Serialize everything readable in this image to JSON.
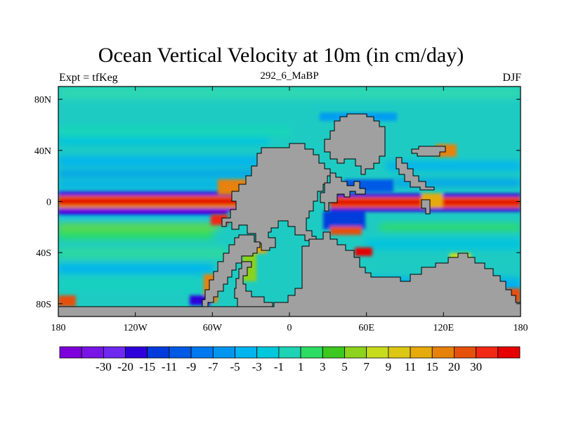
{
  "title": "Ocean Vertical Velocity at 10m (in cm/day)",
  "subtitle_left": "Expt = tfKeg",
  "subtitle_center": "292_6_MaBP",
  "subtitle_right": "DJF",
  "y_ticks": [
    "80N",
    "40N",
    "0",
    "40S",
    "80S"
  ],
  "x_ticks": [
    "180",
    "120W",
    "60W",
    "0",
    "60E",
    "120E",
    "180"
  ],
  "land_color": "#a0a0a0",
  "background_ocean_color": "#1ecbc3",
  "colorbar": {
    "colors": [
      "#7d00dc",
      "#7814e6",
      "#6e28f0",
      "#2d00dc",
      "#003cdc",
      "#005ae6",
      "#0078f0",
      "#0096f0",
      "#00b4f0",
      "#00c8dc",
      "#1ed2b4",
      "#2ddc64",
      "#3cc81e",
      "#8cd21e",
      "#c8dc1e",
      "#dcc814",
      "#e6aa0a",
      "#e6820a",
      "#e6500a",
      "#f02814",
      "#e60000"
    ],
    "labels": [
      "-30",
      "-20",
      "-15",
      "-11",
      "-9",
      "-7",
      "-5",
      "-3",
      "-1",
      "1",
      "3",
      "5",
      "7",
      "9",
      "11",
      "15",
      "20",
      "30"
    ]
  }
}
